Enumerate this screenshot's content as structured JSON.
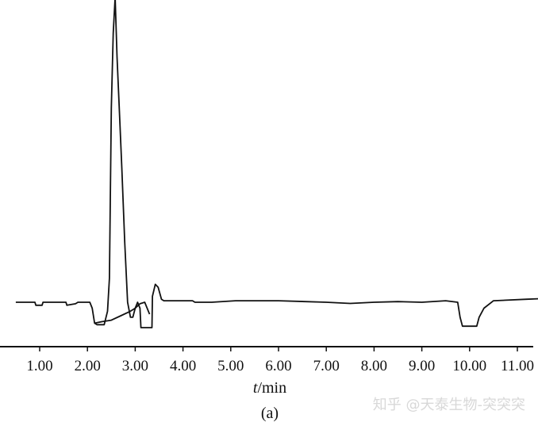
{
  "chart_data": {
    "type": "line",
    "title": "",
    "xlabel_italic": "t",
    "xlabel_rest": "/min",
    "ylabel": "",
    "caption": "(a)",
    "watermark": "知乎 @天泰生物-突突突",
    "xlim": [
      0.5,
      11.7
    ],
    "ylim": [
      -0.2,
      1.0
    ],
    "x_ticks": [
      1.0,
      2.0,
      3.0,
      4.0,
      5.0,
      6.0,
      7.0,
      8.0,
      9.0,
      10.0,
      11.0
    ],
    "x_tick_labels": [
      "1.00",
      "2.00",
      "3.00",
      "4.00",
      "5.00",
      "6.00",
      "7.00",
      "8.00",
      "9.00",
      "10.00",
      "11.00"
    ],
    "grid": false,
    "legend": "none",
    "series": [
      {
        "color": "#111111",
        "points": [
          [
            0.5,
            0.0
          ],
          [
            0.9,
            0.0
          ],
          [
            0.92,
            -0.01
          ],
          [
            1.05,
            -0.01
          ],
          [
            1.07,
            0.0
          ],
          [
            1.55,
            0.0
          ],
          [
            1.57,
            -0.01
          ],
          [
            1.75,
            -0.005
          ],
          [
            1.8,
            0.0
          ],
          [
            2.05,
            0.0
          ],
          [
            2.1,
            -0.02
          ],
          [
            2.15,
            -0.07
          ],
          [
            2.2,
            -0.075
          ],
          [
            2.35,
            -0.075
          ],
          [
            2.42,
            -0.03
          ],
          [
            2.46,
            0.08
          ],
          [
            2.5,
            0.65
          ],
          [
            2.54,
            0.9
          ],
          [
            2.58,
            1.02
          ],
          [
            2.62,
            0.82
          ],
          [
            2.68,
            0.6
          ],
          [
            2.72,
            0.45
          ],
          [
            2.78,
            0.2
          ],
          [
            2.84,
            0.0
          ],
          [
            2.9,
            -0.05
          ],
          [
            2.95,
            -0.05
          ],
          [
            3.0,
            -0.02
          ],
          [
            3.05,
            0.0
          ],
          [
            3.1,
            -0.02
          ],
          [
            3.12,
            -0.085
          ],
          [
            3.35,
            -0.085
          ],
          [
            3.36,
            0.02
          ],
          [
            3.42,
            0.06
          ],
          [
            3.48,
            0.05
          ],
          [
            3.55,
            0.01
          ],
          [
            3.6,
            0.005
          ],
          [
            4.2,
            0.005
          ],
          [
            4.25,
            0.0
          ],
          [
            4.6,
            0.0
          ],
          [
            5.1,
            0.005
          ],
          [
            6.0,
            0.005
          ],
          [
            7.0,
            0.0
          ],
          [
            7.5,
            -0.004
          ],
          [
            8.0,
            0.0
          ],
          [
            8.5,
            0.002
          ],
          [
            9.0,
            0.0
          ],
          [
            9.5,
            0.005
          ],
          [
            9.75,
            0.0
          ],
          [
            9.8,
            -0.05
          ],
          [
            9.85,
            -0.08
          ],
          [
            10.15,
            -0.08
          ],
          [
            10.2,
            -0.05
          ],
          [
            10.3,
            -0.02
          ],
          [
            10.5,
            0.005
          ],
          [
            11.2,
            0.01
          ],
          [
            11.5,
            0.012
          ],
          [
            11.7,
            0.012
          ]
        ]
      },
      {
        "color": "#111111",
        "points": [
          [
            2.15,
            -0.07
          ],
          [
            2.3,
            -0.065
          ],
          [
            2.5,
            -0.06
          ],
          [
            2.7,
            -0.045
          ],
          [
            2.9,
            -0.03
          ],
          [
            3.0,
            -0.02
          ],
          [
            3.1,
            -0.005
          ],
          [
            3.2,
            0.0
          ],
          [
            3.3,
            -0.04
          ]
        ]
      }
    ]
  }
}
